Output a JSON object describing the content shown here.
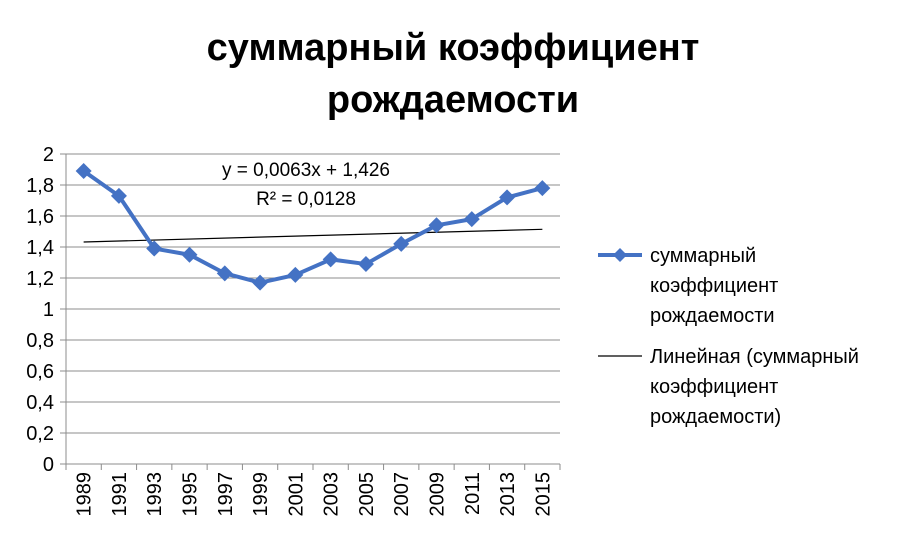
{
  "chart_data": {
    "type": "line",
    "title_lines": [
      "суммарный коэффициент",
      "рождаемости"
    ],
    "categories": [
      "1989",
      "1991",
      "1993",
      "1995",
      "1997",
      "1999",
      "2001",
      "2003",
      "2005",
      "2007",
      "2009",
      "2011",
      "2013",
      "2015"
    ],
    "series": [
      {
        "name": "суммарный коэффициент рождаемости",
        "legend_lines": [
          "суммарный",
          "коэффициент",
          "рождаемости"
        ],
        "color": "#4472C4",
        "marker": "diamond",
        "values": [
          1.89,
          1.73,
          1.39,
          1.35,
          1.23,
          1.17,
          1.22,
          1.32,
          1.29,
          1.42,
          1.54,
          1.58,
          1.72,
          1.78
        ]
      }
    ],
    "trendline": {
      "name": "Линейная (суммарный коэффициент рождаемости)",
      "legend_lines": [
        "Линейная (суммарный",
        "коэффициент",
        "рождаемости)"
      ],
      "color": "#000000",
      "equation": "y = 0,0063x + 1,426",
      "r_squared": "R² = 0,0128",
      "slope": 0.0063,
      "intercept": 1.426
    },
    "ylim": [
      0,
      2
    ],
    "yticks": [
      "0",
      "0,2",
      "0,4",
      "0,6",
      "0,8",
      "1",
      "1,2",
      "1,4",
      "1,6",
      "1,8",
      "2"
    ],
    "ytick_values": [
      0,
      0.2,
      0.4,
      0.6,
      0.8,
      1,
      1.2,
      1.4,
      1.6,
      1.8,
      2
    ],
    "grid": true,
    "legend_position": "right"
  }
}
